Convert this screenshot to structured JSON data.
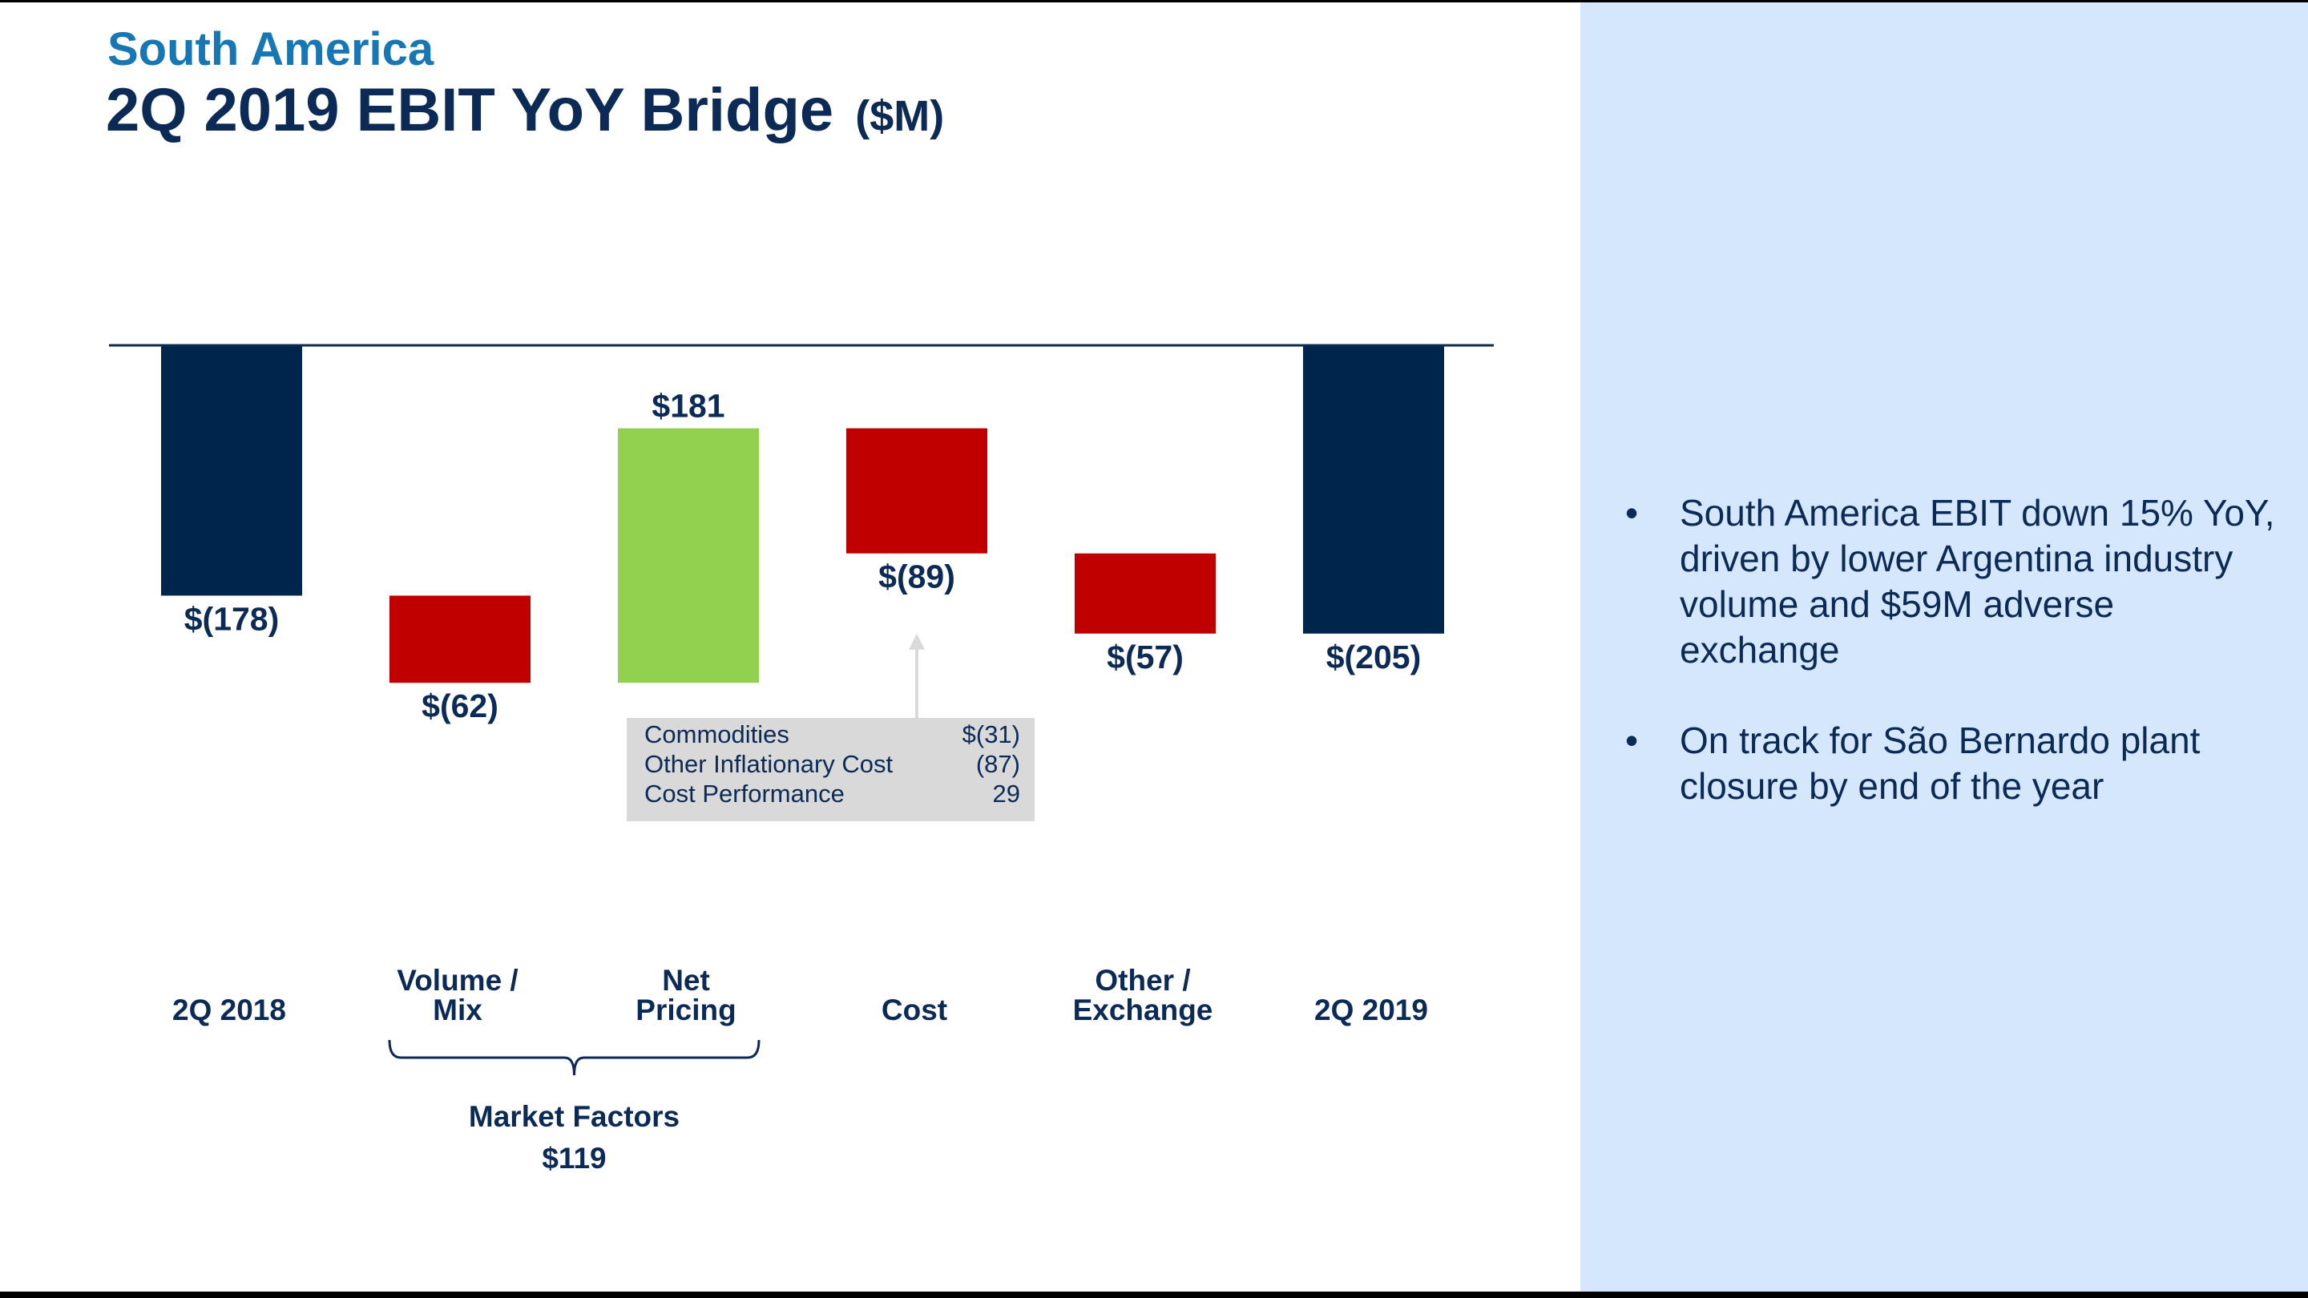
{
  "header": {
    "subtitle": "South America",
    "title": "2Q 2019 EBIT YoY Bridge",
    "unit": "($M)"
  },
  "chart_data": {
    "type": "bar",
    "subtype": "waterfall",
    "categories": [
      {
        "key": "2q2018",
        "lines": [
          "2Q 2018"
        ]
      },
      {
        "key": "volume-mix",
        "lines": [
          "Volume /",
          "Mix"
        ]
      },
      {
        "key": "net-pricing",
        "lines": [
          "Net",
          "Pricing"
        ]
      },
      {
        "key": "cost",
        "lines": [
          "Cost"
        ]
      },
      {
        "key": "other-exchange",
        "lines": [
          "Other /",
          "Exchange"
        ]
      },
      {
        "key": "2q2019",
        "lines": [
          "2Q 2019"
        ]
      }
    ],
    "steps": [
      {
        "kind": "total",
        "value": -178,
        "label": "$(178)"
      },
      {
        "kind": "delta",
        "value": -62,
        "label": "$(62)"
      },
      {
        "kind": "delta",
        "value": 181,
        "label": "$181"
      },
      {
        "kind": "delta",
        "value": -89,
        "label": "$(89)"
      },
      {
        "kind": "delta",
        "value": -57,
        "label": "$(57)"
      },
      {
        "kind": "total",
        "value": -205,
        "label": "$(205)"
      }
    ],
    "colors": {
      "total": "#00254d",
      "negative": "#c00000",
      "positive": "#92d050",
      "axis": "#0b2a55",
      "callout_bg": "#d9d9d9",
      "arrow": "#d9d9d9"
    },
    "group": {
      "label": "Market Factors",
      "value_label": "$119",
      "spans": [
        "volume-mix",
        "net-pricing"
      ]
    },
    "cost_breakdown": [
      {
        "label": "Commodities",
        "value": "$(31)"
      },
      {
        "label": "Other Inflationary Cost",
        "value": "(87)"
      },
      {
        "label": "Cost Performance",
        "value": "29"
      }
    ]
  },
  "sidebar": {
    "bullets": [
      {
        "marker": "•",
        "text": "South America EBIT down 15% YoY, driven by lower Argentina industry volume and $59M adverse exchange"
      },
      {
        "marker": "•",
        "text": "On track for São Bernardo plant closure by end of the year"
      }
    ]
  }
}
